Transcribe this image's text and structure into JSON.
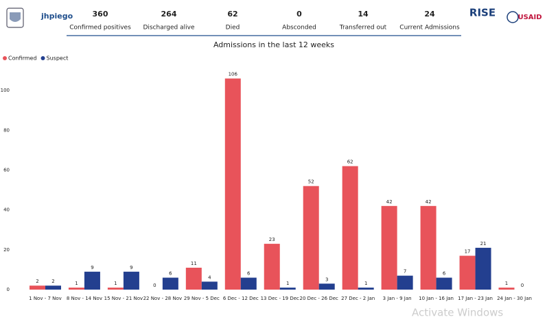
{
  "header": {
    "logos": [
      "jhpiego",
      "RISE",
      "USAID"
    ],
    "kpis": [
      {
        "value": 360,
        "label": "Confirmed positives"
      },
      {
        "value": 264,
        "label": "Discharged alive"
      },
      {
        "value": 62,
        "label": "Died"
      },
      {
        "value": 0,
        "label": "Absconded"
      },
      {
        "value": 14,
        "label": "Transferred out"
      },
      {
        "value": 24,
        "label": "Current Admissions"
      }
    ]
  },
  "chart_data": {
    "type": "bar",
    "title": "Admissions in the last 12 weeks",
    "categories": [
      "1 Nov - 7 Nov",
      "8 Nov - 14 Nov",
      "15 Nov - 21 Nov",
      "22 Nov - 28 Nov",
      "29 Nov - 5 Dec",
      "6 Dec - 12 Dec",
      "13 Dec - 19 Dec",
      "20 Dec - 26 Dec",
      "27 Dec - 2 Jan",
      "3 Jan - 9 Jan",
      "10 Jan - 16 Jan",
      "17 Jan - 23 Jan",
      "24 Jan - 30 Jan"
    ],
    "series": [
      {
        "name": "Confirmed",
        "color": "#e8535a",
        "values": [
          2,
          1,
          1,
          0,
          11,
          106,
          23,
          52,
          62,
          42,
          42,
          17,
          1
        ]
      },
      {
        "name": "Suspect",
        "color": "#233f8f",
        "values": [
          2,
          9,
          9,
          6,
          4,
          6,
          1,
          3,
          1,
          7,
          6,
          21,
          0
        ]
      }
    ],
    "ylim": [
      0,
      110
    ],
    "yticks": [
      0,
      20,
      40,
      60,
      80,
      100
    ],
    "legend": "top-left",
    "grid": false
  },
  "watermark": "Activate Windows"
}
